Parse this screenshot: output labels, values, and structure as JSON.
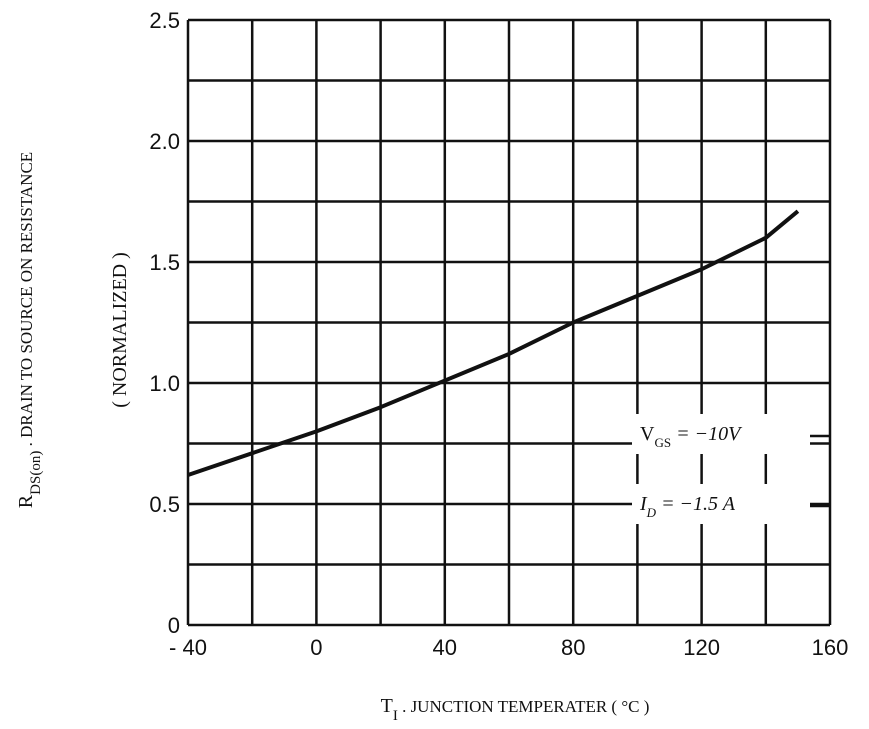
{
  "chart_data": {
    "type": "line",
    "y_label": {
      "main": "R",
      "sub": "DS(on)",
      "rest": " . DRAIN TO SOURCE  ON  RESISTANCE"
    },
    "y_label_2": "( NORMALIZED )",
    "x_label": {
      "main": "T",
      "sub": "I",
      "rest": " . JUNCTION TEMPERATER ( °C )"
    },
    "x": [
      -40,
      0,
      20,
      40,
      60,
      80,
      100,
      120,
      140,
      150
    ],
    "series": [
      {
        "color": "#111111",
        "values": [
          0.62,
          0.8,
          0.9,
          1.01,
          1.12,
          1.25,
          1.36,
          1.47,
          1.6,
          1.71
        ]
      }
    ],
    "xlim": [
      -40,
      160
    ],
    "ylim": [
      0,
      2.5
    ],
    "xticks": [
      {
        "value": -40,
        "label": "- 40"
      },
      0,
      40,
      80,
      120,
      160
    ],
    "yticks": [
      0,
      0.5,
      {
        "value": 1,
        "label": "1.0"
      },
      1.5,
      {
        "value": 2,
        "label": "2.0"
      },
      2.5
    ],
    "x_grid": [
      -20,
      20,
      60,
      100,
      140
    ],
    "y_grid": [
      0.25,
      0.75,
      1.25,
      1.75,
      2.25
    ],
    "grid": true,
    "annotations": [
      {
        "main": "V",
        "sub": "GS",
        "rest": " =  −10V"
      },
      {
        "main": "I",
        "sub": "D",
        "rest": "  =  −1.5 A"
      }
    ]
  }
}
